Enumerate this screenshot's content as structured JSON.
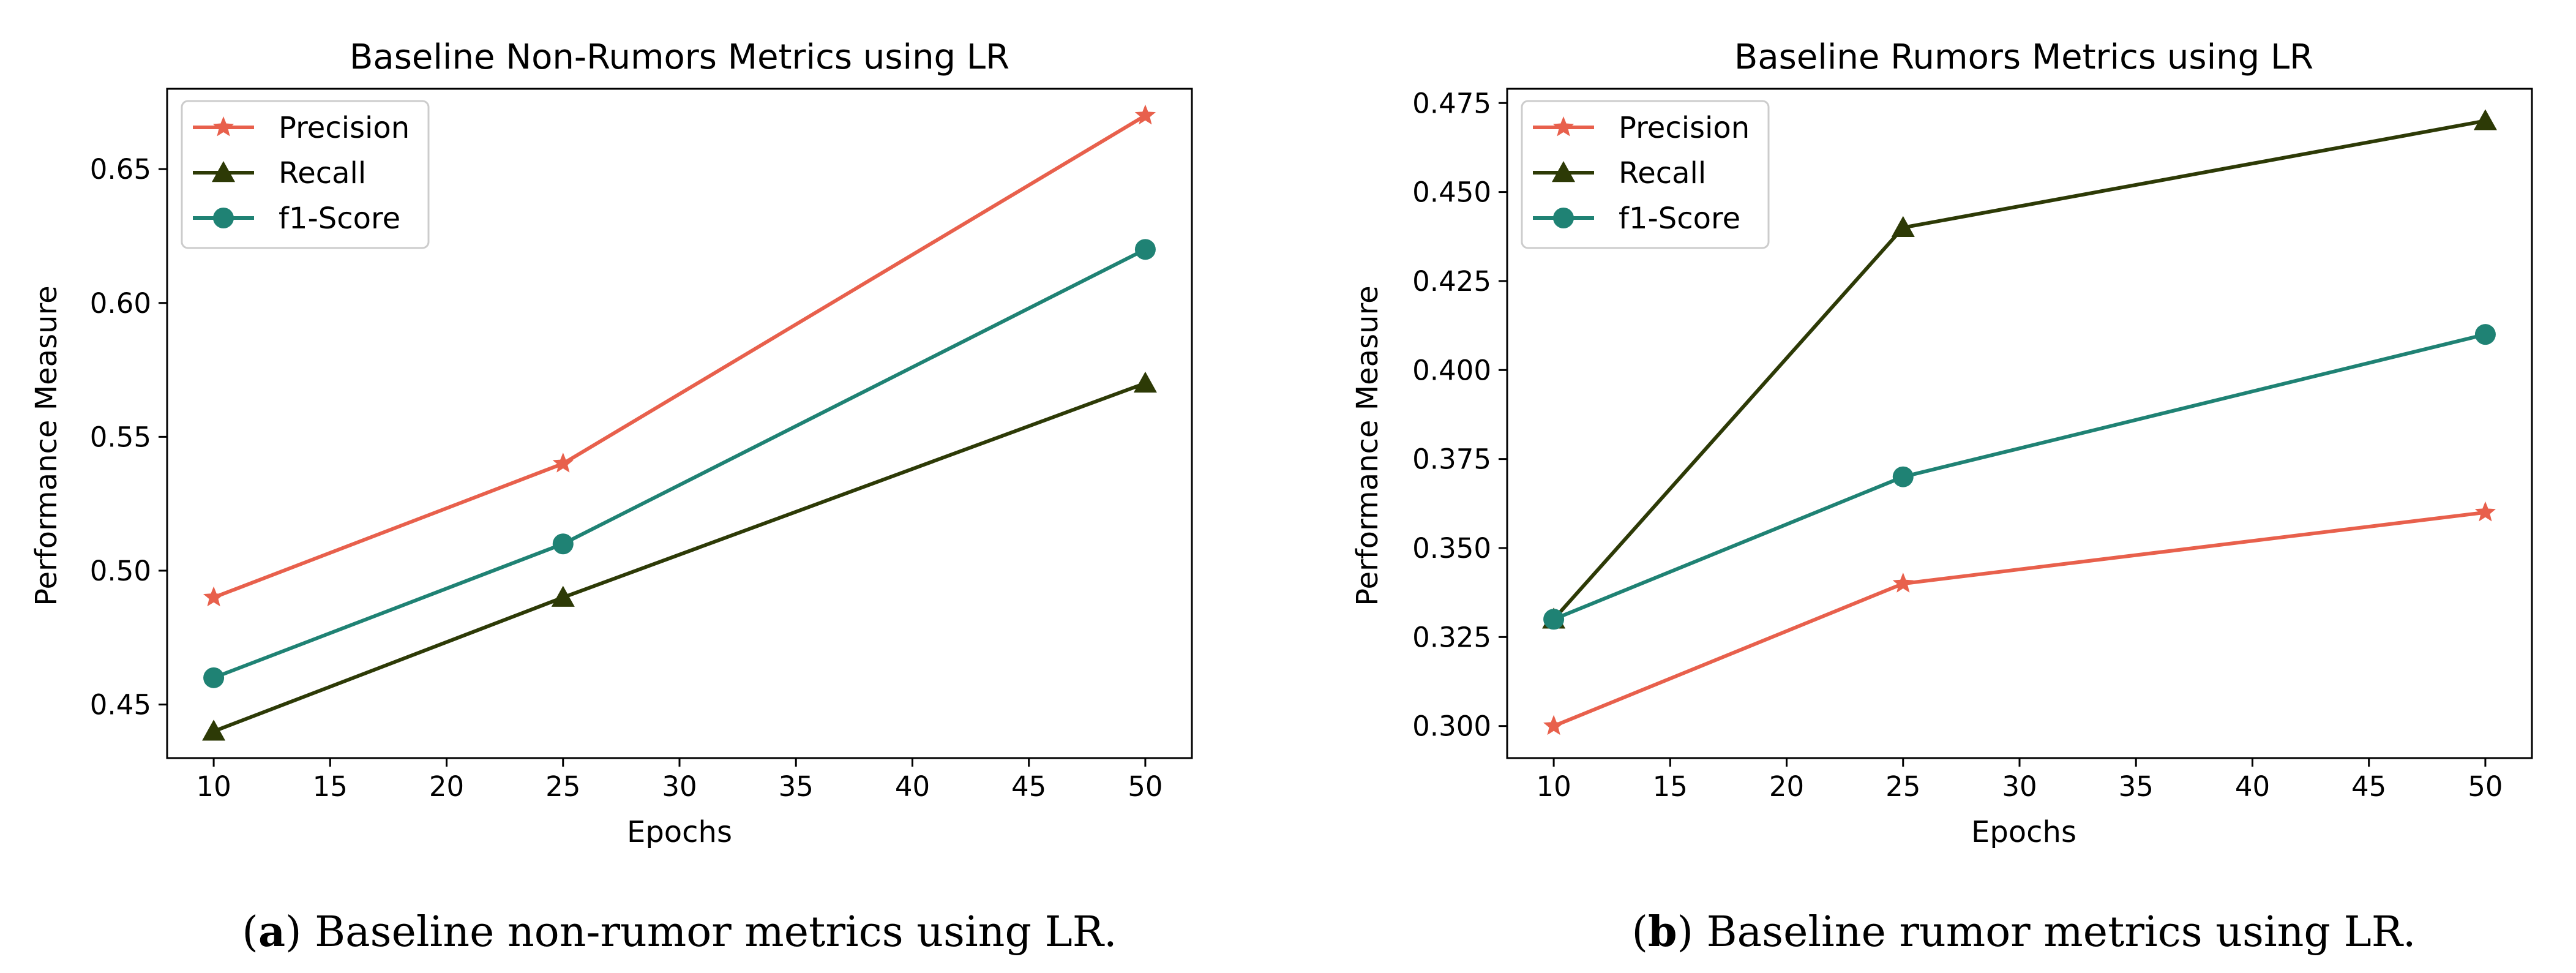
{
  "chart_data": [
    {
      "type": "line",
      "title": "Baseline Non-Rumors Metrics using LR",
      "xlabel": "Epochs",
      "ylabel": "Performance Measure",
      "x": [
        10,
        25,
        50
      ],
      "xlim": [
        8,
        52
      ],
      "ylim": [
        0.43,
        0.68
      ],
      "xticks": [
        10,
        15,
        20,
        25,
        30,
        35,
        40,
        45,
        50
      ],
      "yticks": [
        0.45,
        0.5,
        0.55,
        0.6,
        0.65
      ],
      "ytick_labels": [
        "0.45",
        "0.50",
        "0.55",
        "0.60",
        "0.65"
      ],
      "legend_position": "top-left",
      "series": [
        {
          "name": "Precision",
          "values": [
            0.49,
            0.54,
            0.67
          ],
          "color": "#e8604c",
          "marker": "star"
        },
        {
          "name": "Recall",
          "values": [
            0.44,
            0.49,
            0.57
          ],
          "color": "#2d3a06",
          "marker": "triangle"
        },
        {
          "name": "f1-Score",
          "values": [
            0.46,
            0.51,
            0.62
          ],
          "color": "#1f8274",
          "marker": "circle"
        }
      ],
      "caption_letter": "a",
      "caption_open": "(",
      "caption_close": ")",
      "caption_text": " Baseline non-rumor metrics using LR."
    },
    {
      "type": "line",
      "title": "Baseline Rumors Metrics using LR",
      "xlabel": "Epochs",
      "ylabel": "Performance Measure",
      "x": [
        10,
        25,
        50
      ],
      "xlim": [
        8,
        52
      ],
      "ylim": [
        0.291,
        0.479
      ],
      "xticks": [
        10,
        15,
        20,
        25,
        30,
        35,
        40,
        45,
        50
      ],
      "yticks": [
        0.3,
        0.325,
        0.35,
        0.375,
        0.4,
        0.425,
        0.45,
        0.475
      ],
      "ytick_labels": [
        "0.300",
        "0.325",
        "0.350",
        "0.375",
        "0.400",
        "0.425",
        "0.450",
        "0.475"
      ],
      "legend_position": "top-left",
      "series": [
        {
          "name": "Precision",
          "values": [
            0.3,
            0.34,
            0.36
          ],
          "color": "#e8604c",
          "marker": "star"
        },
        {
          "name": "Recall",
          "values": [
            0.33,
            0.44,
            0.47
          ],
          "color": "#2d3a06",
          "marker": "triangle"
        },
        {
          "name": "f1-Score",
          "values": [
            0.33,
            0.37,
            0.41
          ],
          "color": "#1f8274",
          "marker": "circle"
        }
      ],
      "caption_letter": "b",
      "caption_open": "(",
      "caption_close": ")",
      "caption_text": " Baseline rumor metrics using LR."
    }
  ]
}
